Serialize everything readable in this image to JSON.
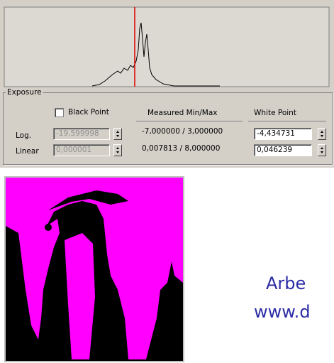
{
  "exposure": {
    "title": "Exposure",
    "black_point": "Black Point",
    "measured": "Measured Min/Max",
    "white_point": "White Point",
    "rows": [
      {
        "label": "Log.",
        "black": "-19,599998",
        "measured": "-7,000000 / 3,000000",
        "white": "-4,434731"
      },
      {
        "label": "Linear",
        "black": "0,000001",
        "measured": "0,007813 / 8,000000",
        "white": "0,046239"
      }
    ]
  },
  "caption": [
    "Arbe",
    "www.d"
  ]
}
